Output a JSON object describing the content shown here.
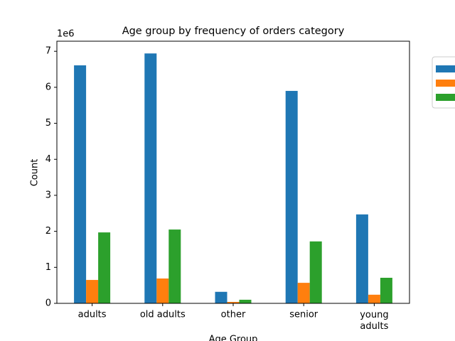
{
  "chart_data": {
    "type": "bar",
    "title": "Age group by frequency of orders category",
    "x_label": "Age Group",
    "y_label": "Count",
    "y_offset_label": "1e6",
    "categories": [
      "adults",
      "old adults",
      "other",
      "senior",
      "young\nadults"
    ],
    "series": [
      {
        "color": "#1f77b4",
        "values": [
          6.61,
          6.94,
          0.32,
          5.9,
          2.47
        ]
      },
      {
        "color": "#ff7f0e",
        "values": [
          0.65,
          0.69,
          0.04,
          0.57,
          0.24
        ]
      },
      {
        "color": "#2ca02c",
        "values": [
          1.97,
          2.05,
          0.1,
          1.72,
          0.71
        ]
      }
    ],
    "ylim": [
      0,
      7.28
    ],
    "yticks": [
      0,
      1,
      2,
      3,
      4,
      5,
      6,
      7
    ],
    "legend": "outside-right"
  }
}
